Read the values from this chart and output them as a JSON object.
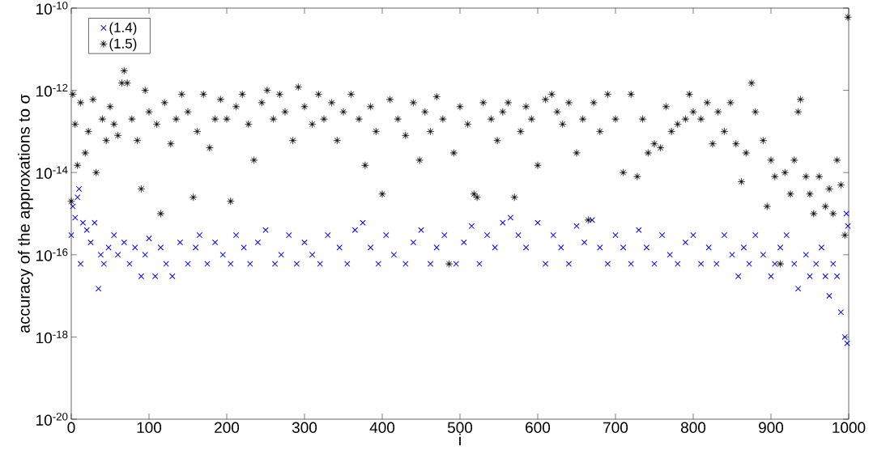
{
  "chart_data": {
    "type": "scatter",
    "xlabel": "i",
    "ylabel": "accuracy of the approxations to σ",
    "xlim": [
      0,
      1000
    ],
    "ylim": [
      1e-20,
      1e-10
    ],
    "log": "y",
    "grid": false,
    "legend": "top left",
    "xticks": [
      0,
      100,
      200,
      300,
      400,
      500,
      600,
      700,
      800,
      900,
      1000
    ],
    "yticks": [
      {
        "value": 1e-20,
        "label": "10$^{-20}$"
      },
      {
        "value": 1e-18,
        "label": "10$^{-18}$"
      },
      {
        "value": 1e-16,
        "label": "10$^{-16}$"
      },
      {
        "value": 1e-14,
        "label": "10$^{-14}$"
      },
      {
        "value": 1e-12,
        "label": "10$^{-12}$"
      },
      {
        "value": 1e-10,
        "label": "10$^{-10}$"
      }
    ],
    "series": [
      {
        "name": "(1.4)",
        "color": "#0000ff",
        "marker": "cross",
        "x": [
          0,
          2,
          5,
          8,
          10,
          12,
          15,
          20,
          25,
          30,
          35,
          38,
          42,
          48,
          55,
          60,
          68,
          75,
          82,
          90,
          95,
          100,
          108,
          115,
          122,
          130,
          140,
          150,
          160,
          165,
          175,
          185,
          195,
          205,
          212,
          222,
          230,
          240,
          250,
          262,
          270,
          280,
          290,
          300,
          310,
          320,
          330,
          345,
          355,
          365,
          375,
          385,
          395,
          405,
          415,
          430,
          440,
          450,
          462,
          470,
          480,
          495,
          505,
          515,
          525,
          535,
          545,
          555,
          565,
          575,
          585,
          600,
          610,
          620,
          630,
          640,
          650,
          660,
          670,
          680,
          690,
          700,
          710,
          720,
          730,
          740,
          750,
          760,
          770,
          780,
          790,
          800,
          810,
          820,
          830,
          840,
          850,
          858,
          865,
          872,
          880,
          890,
          900,
          905,
          912,
          920,
          930,
          935,
          945,
          950,
          958,
          965,
          970,
          975,
          980,
          985,
          990,
          995,
          997,
          998,
          999
        ],
        "values": [
          3e-16,
          1.5e-15,
          8e-16,
          2.5e-15,
          4e-15,
          6e-17,
          6e-16,
          4e-16,
          2e-16,
          6e-16,
          1.5e-17,
          1e-16,
          6e-17,
          1.5e-16,
          3e-16,
          1e-16,
          2e-16,
          6e-17,
          1.5e-16,
          3e-17,
          1e-16,
          2.5e-16,
          3e-17,
          1.5e-16,
          6e-17,
          3e-17,
          2e-16,
          6e-17,
          1.5e-16,
          3e-16,
          6e-17,
          2e-16,
          1e-16,
          6e-17,
          3e-16,
          1.5e-16,
          6e-17,
          2e-16,
          4e-16,
          6e-17,
          1e-16,
          3e-16,
          6e-17,
          2e-16,
          1e-16,
          6e-17,
          3e-16,
          1.5e-16,
          6e-17,
          4e-16,
          6e-16,
          1.5e-16,
          6e-17,
          3e-16,
          1e-16,
          6e-17,
          2e-16,
          4e-16,
          6e-17,
          1.5e-16,
          3e-16,
          6e-17,
          2e-16,
          5e-16,
          6e-17,
          3e-16,
          1.5e-16,
          6e-16,
          8e-16,
          3e-16,
          1.5e-16,
          6e-16,
          6e-17,
          3e-16,
          1.5e-16,
          6e-17,
          5e-16,
          2e-16,
          7e-16,
          1.5e-16,
          6e-17,
          3e-16,
          1.5e-16,
          6e-17,
          4e-16,
          1.5e-16,
          6e-17,
          3e-16,
          1e-16,
          6e-17,
          2e-16,
          3e-16,
          6e-17,
          1.5e-16,
          6e-17,
          3e-16,
          1e-16,
          3e-17,
          1.5e-16,
          6e-17,
          3e-16,
          1e-16,
          3e-17,
          6e-17,
          1.5e-16,
          3e-16,
          6e-17,
          1.5e-17,
          1e-16,
          3e-17,
          6e-17,
          1.5e-16,
          3e-17,
          1e-17,
          6e-17,
          3e-17,
          4e-18,
          1e-18,
          1e-15,
          7e-19,
          5e-16
        ]
      },
      {
        "name": "(1.5)",
        "color": "#000000",
        "marker": "star",
        "x": [
          0,
          2,
          5,
          8,
          12,
          18,
          22,
          28,
          32,
          40,
          45,
          50,
          55,
          60,
          65,
          68,
          72,
          78,
          85,
          90,
          95,
          100,
          110,
          115,
          120,
          128,
          135,
          142,
          150,
          157,
          162,
          170,
          178,
          185,
          192,
          200,
          205,
          212,
          220,
          228,
          235,
          245,
          252,
          260,
          268,
          275,
          285,
          292,
          300,
          310,
          318,
          325,
          335,
          342,
          350,
          360,
          370,
          378,
          385,
          392,
          400,
          410,
          420,
          430,
          440,
          448,
          455,
          462,
          470,
          478,
          486,
          492,
          500,
          510,
          518,
          522,
          530,
          540,
          548,
          555,
          562,
          570,
          578,
          585,
          592,
          600,
          610,
          618,
          625,
          632,
          640,
          650,
          658,
          665,
          672,
          680,
          690,
          700,
          710,
          720,
          728,
          735,
          742,
          750,
          758,
          765,
          772,
          780,
          790,
          795,
          800,
          810,
          818,
          825,
          832,
          840,
          848,
          855,
          862,
          868,
          875,
          880,
          890,
          895,
          900,
          905,
          912,
          918,
          925,
          930,
          935,
          938,
          945,
          950,
          955,
          962,
          970,
          975,
          980,
          985,
          990,
          995,
          999
        ],
        "values": [
          2e-15,
          8e-13,
          1.5e-13,
          1.5e-14,
          5e-13,
          3e-14,
          1e-13,
          6e-13,
          1e-14,
          2e-13,
          6e-14,
          4e-13,
          1.5e-13,
          8e-14,
          1.5e-12,
          3e-12,
          1.5e-12,
          2e-13,
          6e-14,
          4e-15,
          1e-12,
          3e-13,
          1.5e-13,
          1e-15,
          5e-13,
          5e-14,
          2e-13,
          8e-13,
          3e-13,
          2.5e-15,
          1e-13,
          8e-13,
          4e-14,
          2e-13,
          6e-13,
          2e-13,
          2e-15,
          4e-13,
          8e-13,
          1.5e-13,
          2e-14,
          5e-13,
          1e-12,
          2e-13,
          8e-13,
          3e-13,
          6e-14,
          1.2e-12,
          4e-13,
          1.5e-13,
          8e-13,
          2e-13,
          5e-13,
          6e-14,
          3e-13,
          8e-13,
          2e-13,
          1.5e-14,
          4e-13,
          1e-13,
          3e-15,
          6e-13,
          2e-13,
          8e-14,
          5e-13,
          2e-14,
          3e-13,
          1e-13,
          7e-13,
          2e-13,
          6e-17,
          3e-14,
          4e-13,
          1.5e-13,
          3e-15,
          2.5e-15,
          5e-13,
          2e-13,
          6e-14,
          3e-13,
          5e-13,
          2.5e-15,
          1e-13,
          4e-13,
          2e-13,
          1.5e-14,
          6e-13,
          8e-13,
          3e-13,
          1.5e-13,
          5e-13,
          3e-14,
          2e-13,
          7e-16,
          5e-13,
          1e-13,
          8e-13,
          2e-13,
          1e-14,
          8e-13,
          8e-15,
          2e-13,
          3e-14,
          5e-14,
          4e-14,
          4e-13,
          1e-13,
          1.5e-13,
          2e-13,
          8e-13,
          3e-13,
          2e-13,
          5e-13,
          5e-14,
          3e-13,
          1e-13,
          5e-13,
          5e-14,
          6e-15,
          3e-14,
          1.5e-12,
          3e-13,
          6e-14,
          1.5e-15,
          2e-14,
          8e-15,
          6e-17,
          1e-14,
          3e-15,
          2e-14,
          3e-13,
          6e-13,
          8e-15,
          3e-15,
          1e-15,
          8e-15,
          1.5e-15,
          4e-15,
          1e-15,
          2e-14,
          5e-15,
          3e-16,
          6e-11
        ]
      }
    ]
  }
}
